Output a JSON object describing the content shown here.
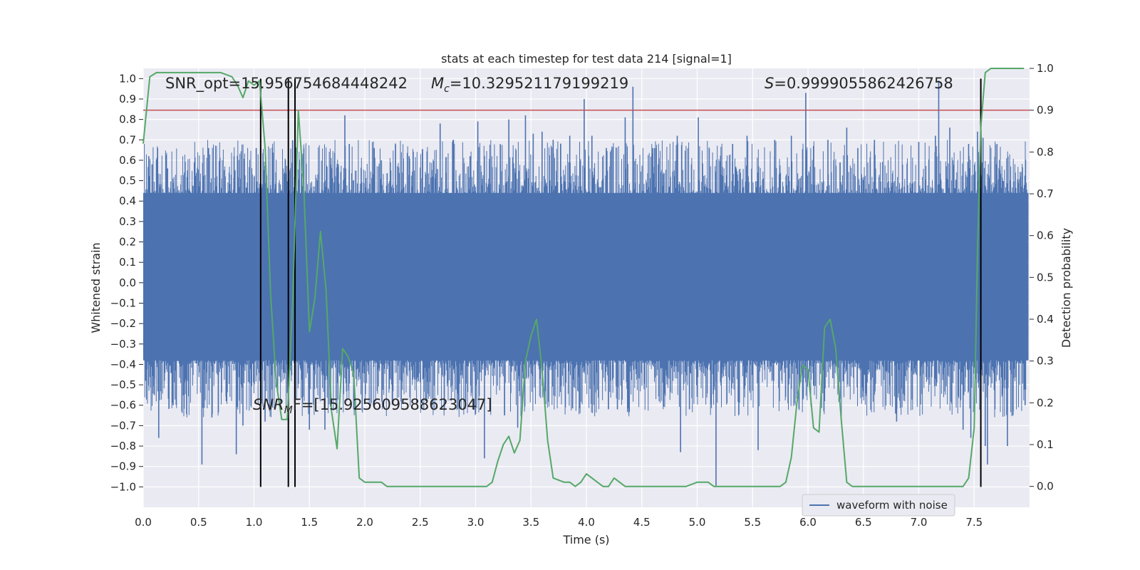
{
  "chart_data": {
    "type": "line",
    "title": "stats at each timestep for test data 214 [signal=1]",
    "xlabel": "Time (s)",
    "ylabel_left": "Whitened strain",
    "ylabel_right": "Detection probability",
    "xlim": [
      0.0,
      8.0
    ],
    "ylim_left": [
      -1.1,
      1.05
    ],
    "ylim_right": [
      -0.05,
      1.0
    ],
    "x_ticks": [
      0.0,
      0.5,
      1.0,
      1.5,
      2.0,
      2.5,
      3.0,
      3.5,
      4.0,
      4.5,
      5.0,
      5.5,
      6.0,
      6.5,
      7.0,
      7.5
    ],
    "x_tick_labels": [
      "0.0",
      "0.5",
      "1.0",
      "1.5",
      "2.0",
      "2.5",
      "3.0",
      "3.5",
      "4.0",
      "4.5",
      "5.0",
      "5.5",
      "6.0",
      "6.5",
      "7.0",
      "7.5"
    ],
    "y_left_ticks": [
      -1.0,
      -0.9,
      -0.8,
      -0.7,
      -0.6,
      -0.5,
      -0.4,
      -0.3,
      -0.2,
      -0.1,
      0.0,
      0.1,
      0.2,
      0.3,
      0.4,
      0.5,
      0.6,
      0.7,
      0.8,
      0.9,
      1.0
    ],
    "y_left_tick_labels": [
      "−1.0",
      "−0.9",
      "−0.8",
      "−0.7",
      "−0.6",
      "−0.5",
      "−0.4",
      "−0.3",
      "−0.2",
      "−0.1",
      "0.0",
      "0.1",
      "0.2",
      "0.3",
      "0.4",
      "0.5",
      "0.6",
      "0.7",
      "0.8",
      "0.9",
      "1.0"
    ],
    "y_right_ticks": [
      0.0,
      0.1,
      0.2,
      0.3,
      0.4,
      0.5,
      0.6,
      0.7,
      0.8,
      0.9,
      1.0
    ],
    "y_right_tick_labels": [
      "0.0",
      "0.1",
      "0.2",
      "0.3",
      "0.4",
      "0.5",
      "0.6",
      "0.7",
      "0.8",
      "0.9",
      "1.0"
    ],
    "grid": true,
    "legend": {
      "placement": "lower-right",
      "entries": [
        "waveform with noise"
      ]
    },
    "annotations": {
      "snr_opt": "SNR_opt=15.956754684448242",
      "mc_symbol": "M",
      "mc_sub": "c",
      "mc_value": "=10.329521179199219",
      "s_symbol": "S",
      "s_value": "=0.9999055862426758",
      "snrmf_symbol": "SNR",
      "snrmf_sub": "M",
      "snrmf_value": "F=[15.925609588623047]"
    },
    "threshold_right": 0.9,
    "vertical_lines_x": [
      1.06,
      1.31,
      1.37,
      7.56
    ],
    "series": [
      {
        "name": "waveform with noise",
        "kind": "noise-strain",
        "color": "#4c72b0",
        "core_band": [
          -0.38,
          0.44
        ],
        "spikes": [
          {
            "x": 0.02,
            "y": -0.48
          },
          {
            "x": 0.05,
            "y": 0.62
          },
          {
            "x": 0.08,
            "y": 0.58
          },
          {
            "x": 0.1,
            "y": -0.55
          },
          {
            "x": 0.14,
            "y": -0.76
          },
          {
            "x": 0.22,
            "y": 0.56
          },
          {
            "x": 0.27,
            "y": -0.6
          },
          {
            "x": 0.4,
            "y": 0.55
          },
          {
            "x": 0.53,
            "y": -0.89
          },
          {
            "x": 0.59,
            "y": 0.66
          },
          {
            "x": 0.62,
            "y": -0.66
          },
          {
            "x": 0.75,
            "y": -0.58
          },
          {
            "x": 0.82,
            "y": 0.62
          },
          {
            "x": 0.84,
            "y": -0.84
          },
          {
            "x": 0.9,
            "y": -0.7
          },
          {
            "x": 1.02,
            "y": 0.66
          },
          {
            "x": 1.1,
            "y": -0.68
          },
          {
            "x": 1.17,
            "y": 0.55
          },
          {
            "x": 1.45,
            "y": 0.66
          },
          {
            "x": 1.5,
            "y": -0.72
          },
          {
            "x": 1.64,
            "y": -0.72
          },
          {
            "x": 1.76,
            "y": 0.58
          },
          {
            "x": 1.82,
            "y": 0.82
          },
          {
            "x": 1.86,
            "y": 0.68
          },
          {
            "x": 1.9,
            "y": -0.62
          },
          {
            "x": 2.08,
            "y": 0.66
          },
          {
            "x": 2.15,
            "y": 0.6
          },
          {
            "x": 2.25,
            "y": -0.58
          },
          {
            "x": 2.4,
            "y": 0.62
          },
          {
            "x": 2.52,
            "y": 0.64
          },
          {
            "x": 2.55,
            "y": -0.58
          },
          {
            "x": 2.68,
            "y": 0.78
          },
          {
            "x": 2.8,
            "y": 0.7
          },
          {
            "x": 2.95,
            "y": 0.62
          },
          {
            "x": 3.02,
            "y": 0.79
          },
          {
            "x": 3.08,
            "y": -0.86
          },
          {
            "x": 3.3,
            "y": 0.8
          },
          {
            "x": 3.38,
            "y": -0.71
          },
          {
            "x": 3.45,
            "y": 0.82
          },
          {
            "x": 3.52,
            "y": 0.73
          },
          {
            "x": 3.6,
            "y": 0.74
          },
          {
            "x": 3.7,
            "y": 0.7
          },
          {
            "x": 3.85,
            "y": 0.72
          },
          {
            "x": 3.98,
            "y": 0.9
          },
          {
            "x": 4.05,
            "y": 0.72
          },
          {
            "x": 4.18,
            "y": 0.66
          },
          {
            "x": 4.28,
            "y": -0.62
          },
          {
            "x": 4.35,
            "y": 0.81
          },
          {
            "x": 4.42,
            "y": 0.96
          },
          {
            "x": 4.6,
            "y": 0.66
          },
          {
            "x": 4.82,
            "y": 0.72
          },
          {
            "x": 4.85,
            "y": -0.83
          },
          {
            "x": 4.93,
            "y": -0.62
          },
          {
            "x": 5.01,
            "y": 0.81
          },
          {
            "x": 5.17,
            "y": -1.0
          },
          {
            "x": 5.32,
            "y": 0.68
          },
          {
            "x": 5.45,
            "y": 0.72
          },
          {
            "x": 5.55,
            "y": -0.82
          },
          {
            "x": 5.7,
            "y": 0.7
          },
          {
            "x": 5.85,
            "y": 0.72
          },
          {
            "x": 5.98,
            "y": 0.93
          },
          {
            "x": 6.05,
            "y": 0.67
          },
          {
            "x": 6.18,
            "y": 0.7
          },
          {
            "x": 6.35,
            "y": 0.76
          },
          {
            "x": 6.45,
            "y": 0.66
          },
          {
            "x": 6.6,
            "y": 0.7
          },
          {
            "x": 6.8,
            "y": -0.68
          },
          {
            "x": 7.0,
            "y": 0.69
          },
          {
            "x": 7.15,
            "y": 0.72
          },
          {
            "x": 7.18,
            "y": 0.99
          },
          {
            "x": 7.28,
            "y": 0.76
          },
          {
            "x": 7.4,
            "y": -0.72
          },
          {
            "x": 7.45,
            "y": 0.68
          },
          {
            "x": 7.47,
            "y": -0.76
          },
          {
            "x": 7.53,
            "y": 0.74
          },
          {
            "x": 7.58,
            "y": 0.71
          },
          {
            "x": 7.6,
            "y": -0.8
          },
          {
            "x": 7.62,
            "y": -0.89
          },
          {
            "x": 7.7,
            "y": 0.58
          },
          {
            "x": 7.8,
            "y": -0.8
          },
          {
            "x": 7.85,
            "y": -0.65
          },
          {
            "x": 7.92,
            "y": 0.52
          },
          {
            "x": 7.96,
            "y": -0.6
          }
        ]
      },
      {
        "name": "",
        "kind": "detection-probability",
        "color": "#55a868",
        "axis": "right",
        "x": [
          0.0,
          0.06,
          0.12,
          0.2,
          0.3,
          0.4,
          0.5,
          0.6,
          0.7,
          0.8,
          0.85,
          0.9,
          0.95,
          1.0,
          1.05,
          1.1,
          1.15,
          1.2,
          1.25,
          1.3,
          1.35,
          1.4,
          1.45,
          1.5,
          1.55,
          1.6,
          1.65,
          1.7,
          1.75,
          1.8,
          1.85,
          1.9,
          1.95,
          2.0,
          2.05,
          2.1,
          2.15,
          2.2,
          2.3,
          2.4,
          2.5,
          2.6,
          2.7,
          2.8,
          2.9,
          3.0,
          3.1,
          3.15,
          3.2,
          3.25,
          3.3,
          3.35,
          3.4,
          3.45,
          3.5,
          3.55,
          3.6,
          3.65,
          3.7,
          3.8,
          3.85,
          3.9,
          3.95,
          4.0,
          4.05,
          4.1,
          4.15,
          4.2,
          4.25,
          4.3,
          4.35,
          4.4,
          4.45,
          4.5,
          4.6,
          4.7,
          4.8,
          4.9,
          5.0,
          5.05,
          5.1,
          5.15,
          5.2,
          5.3,
          5.4,
          5.5,
          5.6,
          5.7,
          5.75,
          5.8,
          5.85,
          5.9,
          5.95,
          6.0,
          6.05,
          6.1,
          6.15,
          6.2,
          6.25,
          6.3,
          6.35,
          6.4,
          6.45,
          6.5,
          6.6,
          6.7,
          6.8,
          6.9,
          7.0,
          7.1,
          7.2,
          7.3,
          7.4,
          7.45,
          7.5,
          7.53,
          7.56,
          7.6,
          7.65,
          7.7,
          7.8,
          7.9,
          7.95
        ],
        "y": [
          0.82,
          0.98,
          0.99,
          0.99,
          0.99,
          0.99,
          0.99,
          0.99,
          0.99,
          0.98,
          0.96,
          0.93,
          0.97,
          0.96,
          0.97,
          0.81,
          0.46,
          0.25,
          0.16,
          0.16,
          0.45,
          0.9,
          0.71,
          0.37,
          0.45,
          0.61,
          0.47,
          0.18,
          0.09,
          0.33,
          0.31,
          0.27,
          0.02,
          0.01,
          0.01,
          0.01,
          0.01,
          0.0,
          0.0,
          0.0,
          0.0,
          0.0,
          0.0,
          0.0,
          0.0,
          0.0,
          0.0,
          0.01,
          0.06,
          0.1,
          0.12,
          0.08,
          0.11,
          0.3,
          0.36,
          0.4,
          0.28,
          0.11,
          0.02,
          0.01,
          0.01,
          0.0,
          0.01,
          0.03,
          0.02,
          0.01,
          0.0,
          0.0,
          0.02,
          0.01,
          0.0,
          0.0,
          0.0,
          0.0,
          0.0,
          0.0,
          0.0,
          0.0,
          0.01,
          0.01,
          0.01,
          0.0,
          0.0,
          0.0,
          0.0,
          0.0,
          0.0,
          0.0,
          0.0,
          0.01,
          0.07,
          0.2,
          0.29,
          0.28,
          0.14,
          0.13,
          0.38,
          0.4,
          0.33,
          0.16,
          0.01,
          0.0,
          0.0,
          0.0,
          0.0,
          0.0,
          0.0,
          0.0,
          0.0,
          0.0,
          0.0,
          0.0,
          0.0,
          0.02,
          0.14,
          0.56,
          0.86,
          0.99,
          1.0,
          1.0,
          1.0,
          1.0,
          1.0
        ]
      }
    ]
  }
}
